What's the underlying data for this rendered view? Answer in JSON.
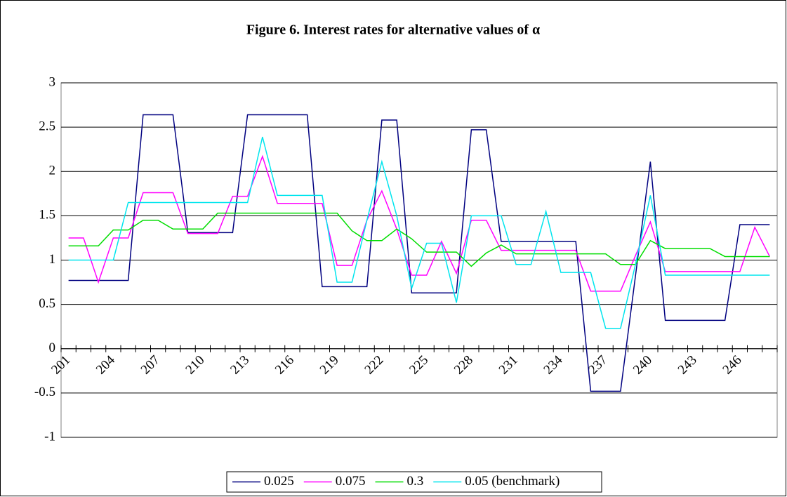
{
  "chart_data": {
    "type": "line",
    "title": "Figure 6. Interest rates for alternative values of α",
    "categories": [
      201,
      null,
      null,
      204,
      null,
      null,
      207,
      null,
      null,
      210,
      null,
      null,
      213,
      null,
      null,
      216,
      null,
      null,
      219,
      null,
      null,
      222,
      null,
      null,
      225,
      null,
      null,
      228,
      null,
      null,
      231,
      null,
      null,
      234,
      null,
      null,
      237,
      null,
      null,
      240,
      null,
      null,
      243,
      null,
      null,
      246,
      null,
      null
    ],
    "ylim": [
      -1,
      3
    ],
    "yticks": [
      -1,
      -0.5,
      0,
      0.5,
      1,
      1.5,
      2,
      2.5,
      3
    ],
    "grid": true,
    "legend": "bottom",
    "series": [
      {
        "name": "0.025",
        "color": "#000080",
        "values": [
          0.77,
          0.77,
          0.77,
          0.77,
          0.77,
          2.64,
          2.64,
          2.64,
          1.31,
          1.31,
          1.31,
          1.31,
          2.64,
          2.64,
          2.64,
          2.64,
          2.64,
          0.7,
          0.7,
          0.7,
          0.7,
          2.58,
          2.58,
          0.63,
          0.63,
          0.63,
          0.63,
          2.47,
          2.47,
          1.21,
          1.21,
          1.21,
          1.21,
          1.21,
          1.21,
          -0.48,
          -0.48,
          -0.48,
          0.82,
          2.11,
          0.32,
          0.32,
          0.32,
          0.32,
          0.32,
          1.4,
          1.4,
          1.4
        ]
      },
      {
        "name": "0.075",
        "color": "#ff00ff",
        "values": [
          1.25,
          1.25,
          0.75,
          1.25,
          1.25,
          1.76,
          1.76,
          1.76,
          1.3,
          1.3,
          1.3,
          1.72,
          1.72,
          2.17,
          1.64,
          1.64,
          1.64,
          1.64,
          0.94,
          0.94,
          1.45,
          1.78,
          1.35,
          0.83,
          0.83,
          1.21,
          0.85,
          1.45,
          1.45,
          1.11,
          1.11,
          1.11,
          1.11,
          1.11,
          1.11,
          0.65,
          0.65,
          0.65,
          1.05,
          1.43,
          0.87,
          0.87,
          0.87,
          0.87,
          0.87,
          0.87,
          1.37,
          1.04
        ]
      },
      {
        "name": "0.3",
        "color": "#00dd00",
        "values": [
          1.16,
          1.16,
          1.16,
          1.34,
          1.34,
          1.45,
          1.45,
          1.35,
          1.35,
          1.35,
          1.53,
          1.53,
          1.53,
          1.53,
          1.53,
          1.53,
          1.53,
          1.53,
          1.53,
          1.33,
          1.22,
          1.22,
          1.35,
          1.24,
          1.09,
          1.09,
          1.09,
          0.93,
          1.08,
          1.17,
          1.07,
          1.07,
          1.07,
          1.07,
          1.07,
          1.07,
          1.07,
          0.95,
          0.95,
          1.22,
          1.13,
          1.13,
          1.13,
          1.13,
          1.04,
          1.04,
          1.04,
          1.04
        ]
      },
      {
        "name": "0.05 (benchmark)",
        "color": "#00e5ee",
        "values": [
          1.0,
          1.0,
          1.0,
          1.0,
          1.65,
          1.65,
          1.65,
          1.65,
          1.65,
          1.65,
          1.65,
          1.65,
          1.65,
          2.39,
          1.73,
          1.73,
          1.73,
          1.73,
          0.75,
          0.75,
          1.45,
          2.11,
          1.5,
          0.68,
          1.19,
          1.19,
          0.52,
          1.5,
          1.5,
          1.5,
          0.95,
          0.95,
          1.55,
          0.86,
          0.86,
          0.86,
          0.23,
          0.23,
          0.95,
          1.73,
          0.83,
          0.83,
          0.83,
          0.83,
          0.83,
          0.83,
          0.83,
          0.83
        ]
      }
    ]
  }
}
